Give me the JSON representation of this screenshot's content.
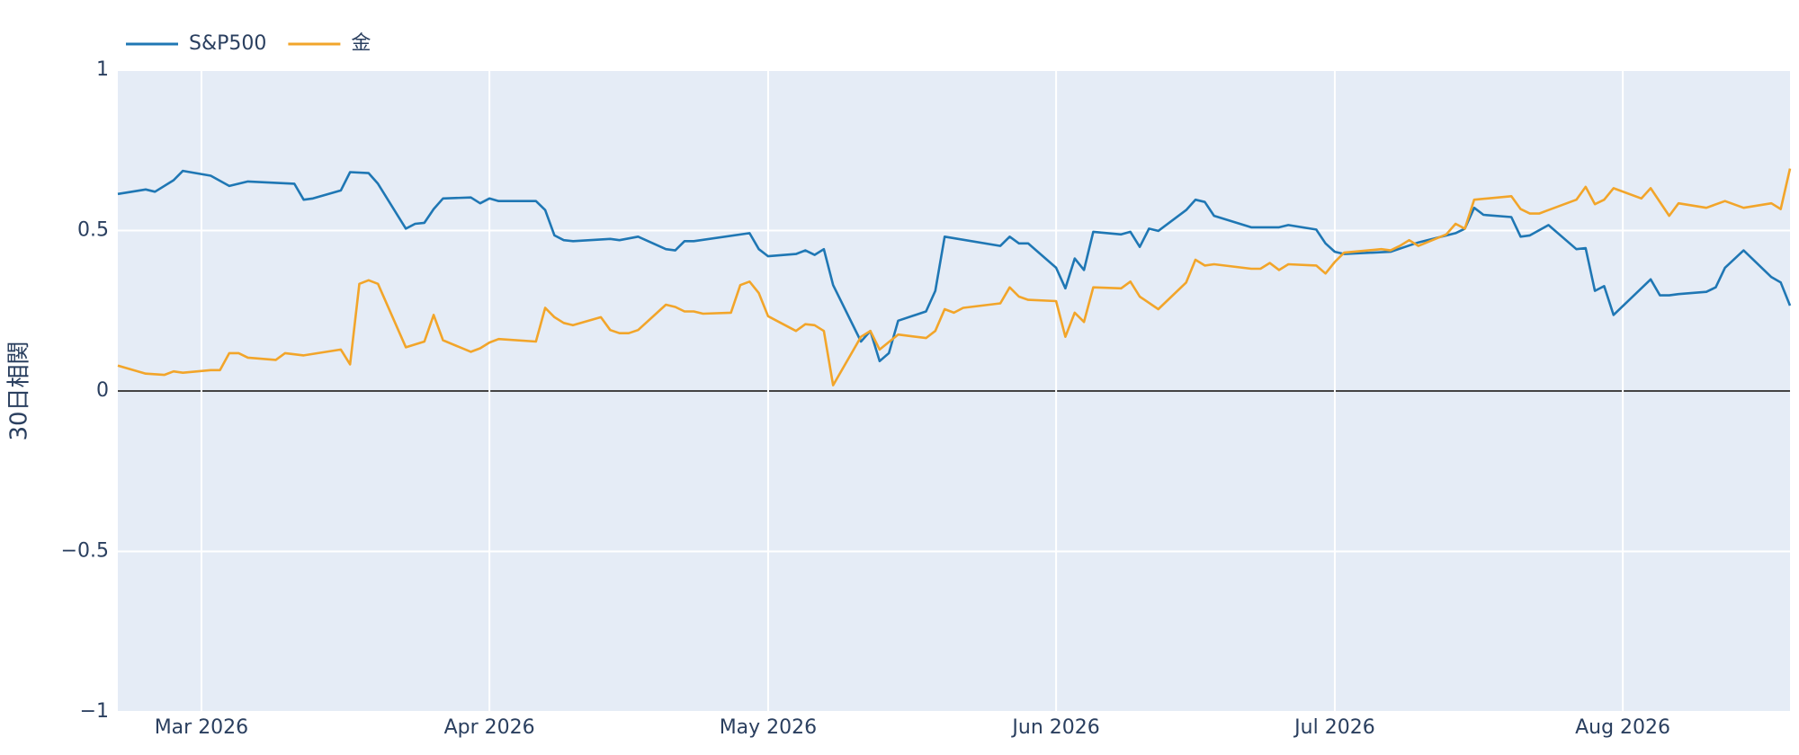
{
  "chart_data": {
    "type": "line",
    "y_label": "30日相関",
    "xlim": [
      "2026-02-20",
      "2026-08-19"
    ],
    "xticks": [
      {
        "value": "2026-03-01",
        "label": "Mar 2026"
      },
      {
        "value": "2026-04-01",
        "label": "Apr 2026"
      },
      {
        "value": "2026-05-01",
        "label": "May 2026"
      },
      {
        "value": "2026-06-01",
        "label": "Jun 2026"
      },
      {
        "value": "2026-07-01",
        "label": "Jul 2026"
      },
      {
        "value": "2026-08-01",
        "label": "Aug 2026"
      }
    ],
    "ylim": [
      -1,
      1
    ],
    "yticks": [
      {
        "value": -1,
        "label": "−1"
      },
      {
        "value": -0.5,
        "label": "−0.5"
      },
      0,
      0.5,
      1
    ],
    "grid": true,
    "legend": "top-left",
    "series": [
      {
        "name": "S&P500",
        "color": "#1f77b4",
        "x": [
          "2026-02-20",
          "2026-02-23",
          "2026-02-24",
          "2026-02-26",
          "2026-02-27",
          "2026-03-02",
          "2026-03-04",
          "2026-03-06",
          "2026-03-11",
          "2026-03-12",
          "2026-03-13",
          "2026-03-16",
          "2026-03-17",
          "2026-03-19",
          "2026-03-20",
          "2026-03-23",
          "2026-03-24",
          "2026-03-25",
          "2026-03-26",
          "2026-03-27",
          "2026-03-30",
          "2026-03-31",
          "2026-04-01",
          "2026-04-02",
          "2026-04-06",
          "2026-04-07",
          "2026-04-08",
          "2026-04-09",
          "2026-04-10",
          "2026-04-14",
          "2026-04-15",
          "2026-04-17",
          "2026-04-20",
          "2026-04-21",
          "2026-04-22",
          "2026-04-23",
          "2026-04-29",
          "2026-04-30",
          "2026-05-01",
          "2026-05-04",
          "2026-05-05",
          "2026-05-06",
          "2026-05-07",
          "2026-05-08",
          "2026-05-11",
          "2026-05-12",
          "2026-05-13",
          "2026-05-14",
          "2026-05-15",
          "2026-05-18",
          "2026-05-19",
          "2026-05-20",
          "2026-05-26",
          "2026-05-27",
          "2026-05-28",
          "2026-05-29",
          "2026-06-01",
          "2026-06-02",
          "2026-06-03",
          "2026-06-04",
          "2026-06-05",
          "2026-06-08",
          "2026-06-09",
          "2026-06-10",
          "2026-06-11",
          "2026-06-12",
          "2026-06-15",
          "2026-06-16",
          "2026-06-17",
          "2026-06-18",
          "2026-06-22",
          "2026-06-25",
          "2026-06-26",
          "2026-06-29",
          "2026-06-30",
          "2026-07-01",
          "2026-07-02",
          "2026-07-07",
          "2026-07-10",
          "2026-07-14",
          "2026-07-15",
          "2026-07-16",
          "2026-07-17",
          "2026-07-20",
          "2026-07-21",
          "2026-07-22",
          "2026-07-24",
          "2026-07-27",
          "2026-07-28",
          "2026-07-29",
          "2026-07-30",
          "2026-07-31",
          "2026-08-04",
          "2026-08-05",
          "2026-08-06",
          "2026-08-07",
          "2026-08-10",
          "2026-08-11",
          "2026-08-12",
          "2026-08-14",
          "2026-08-17",
          "2026-08-18",
          "2026-08-19"
        ],
        "values": [
          0.614,
          0.628,
          0.621,
          0.657,
          0.686,
          0.671,
          0.639,
          0.653,
          0.646,
          0.596,
          0.6,
          0.625,
          0.682,
          0.679,
          0.646,
          0.506,
          0.521,
          0.524,
          0.567,
          0.6,
          0.603,
          0.585,
          0.6,
          0.592,
          0.592,
          0.564,
          0.485,
          0.47,
          0.467,
          0.474,
          0.47,
          0.481,
          0.442,
          0.438,
          0.467,
          0.467,
          0.492,
          0.442,
          0.42,
          0.427,
          0.438,
          0.424,
          0.442,
          0.33,
          0.154,
          0.187,
          0.093,
          0.118,
          0.219,
          0.248,
          0.312,
          0.481,
          0.452,
          0.481,
          0.46,
          0.46,
          0.384,
          0.32,
          0.413,
          0.377,
          0.496,
          0.488,
          0.496,
          0.449,
          0.506,
          0.499,
          0.564,
          0.596,
          0.589,
          0.546,
          0.51,
          0.51,
          0.517,
          0.503,
          0.46,
          0.434,
          0.427,
          0.434,
          0.463,
          0.492,
          0.506,
          0.571,
          0.549,
          0.542,
          0.481,
          0.485,
          0.517,
          0.442,
          0.445,
          0.312,
          0.327,
          0.237,
          0.348,
          0.298,
          0.298,
          0.302,
          0.309,
          0.323,
          0.384,
          0.438,
          0.355,
          0.338,
          0.266
        ]
      },
      {
        "name": "金",
        "color": "#f2a52a",
        "x": [
          "2026-02-20",
          "2026-02-23",
          "2026-02-25",
          "2026-02-26",
          "2026-02-27",
          "2026-03-02",
          "2026-03-03",
          "2026-03-04",
          "2026-03-05",
          "2026-03-06",
          "2026-03-09",
          "2026-03-10",
          "2026-03-12",
          "2026-03-16",
          "2026-03-17",
          "2026-03-18",
          "2026-03-19",
          "2026-03-20",
          "2026-03-23",
          "2026-03-25",
          "2026-03-26",
          "2026-03-27",
          "2026-03-30",
          "2026-03-31",
          "2026-04-01",
          "2026-04-02",
          "2026-04-06",
          "2026-04-07",
          "2026-04-08",
          "2026-04-09",
          "2026-04-10",
          "2026-04-13",
          "2026-04-14",
          "2026-04-15",
          "2026-04-16",
          "2026-04-17",
          "2026-04-20",
          "2026-04-21",
          "2026-04-22",
          "2026-04-23",
          "2026-04-24",
          "2026-04-27",
          "2026-04-28",
          "2026-04-29",
          "2026-04-30",
          "2026-05-01",
          "2026-05-04",
          "2026-05-05",
          "2026-05-06",
          "2026-05-07",
          "2026-05-08",
          "2026-05-11",
          "2026-05-12",
          "2026-05-13",
          "2026-05-15",
          "2026-05-18",
          "2026-05-19",
          "2026-05-20",
          "2026-05-21",
          "2026-05-22",
          "2026-05-26",
          "2026-05-27",
          "2026-05-28",
          "2026-05-29",
          "2026-06-01",
          "2026-06-02",
          "2026-06-03",
          "2026-06-04",
          "2026-06-05",
          "2026-06-08",
          "2026-06-09",
          "2026-06-10",
          "2026-06-12",
          "2026-06-15",
          "2026-06-16",
          "2026-06-17",
          "2026-06-18",
          "2026-06-22",
          "2026-06-23",
          "2026-06-24",
          "2026-06-25",
          "2026-06-26",
          "2026-06-29",
          "2026-06-30",
          "2026-07-01",
          "2026-07-02",
          "2026-07-06",
          "2026-07-07",
          "2026-07-08",
          "2026-07-09",
          "2026-07-10",
          "2026-07-13",
          "2026-07-14",
          "2026-07-15",
          "2026-07-16",
          "2026-07-20",
          "2026-07-21",
          "2026-07-22",
          "2026-07-23",
          "2026-07-24",
          "2026-07-27",
          "2026-07-28",
          "2026-07-29",
          "2026-07-30",
          "2026-07-31",
          "2026-08-03",
          "2026-08-04",
          "2026-08-06",
          "2026-08-07",
          "2026-08-10",
          "2026-08-12",
          "2026-08-14",
          "2026-08-17",
          "2026-08-18",
          "2026-08-19"
        ],
        "values": [
          0.079,
          0.054,
          0.05,
          0.061,
          0.057,
          0.065,
          0.065,
          0.118,
          0.118,
          0.104,
          0.097,
          0.118,
          0.111,
          0.129,
          0.083,
          0.334,
          0.345,
          0.334,
          0.136,
          0.154,
          0.237,
          0.158,
          0.122,
          0.133,
          0.151,
          0.162,
          0.154,
          0.259,
          0.23,
          0.212,
          0.205,
          0.23,
          0.19,
          0.18,
          0.18,
          0.19,
          0.269,
          0.262,
          0.248,
          0.248,
          0.241,
          0.244,
          0.33,
          0.341,
          0.305,
          0.233,
          0.187,
          0.208,
          0.205,
          0.187,
          0.018,
          0.169,
          0.187,
          0.129,
          0.176,
          0.165,
          0.187,
          0.255,
          0.244,
          0.259,
          0.273,
          0.323,
          0.294,
          0.284,
          0.28,
          0.169,
          0.244,
          0.215,
          0.323,
          0.32,
          0.341,
          0.294,
          0.255,
          0.338,
          0.409,
          0.391,
          0.395,
          0.381,
          0.381,
          0.399,
          0.377,
          0.395,
          0.391,
          0.366,
          0.402,
          0.431,
          0.442,
          0.438,
          0.452,
          0.47,
          0.452,
          0.488,
          0.521,
          0.506,
          0.596,
          0.607,
          0.567,
          0.553,
          0.553,
          0.564,
          0.596,
          0.636,
          0.582,
          0.596,
          0.632,
          0.6,
          0.632,
          0.546,
          0.585,
          0.571,
          0.592,
          0.571,
          0.585,
          0.567,
          0.693
        ]
      }
    ]
  }
}
